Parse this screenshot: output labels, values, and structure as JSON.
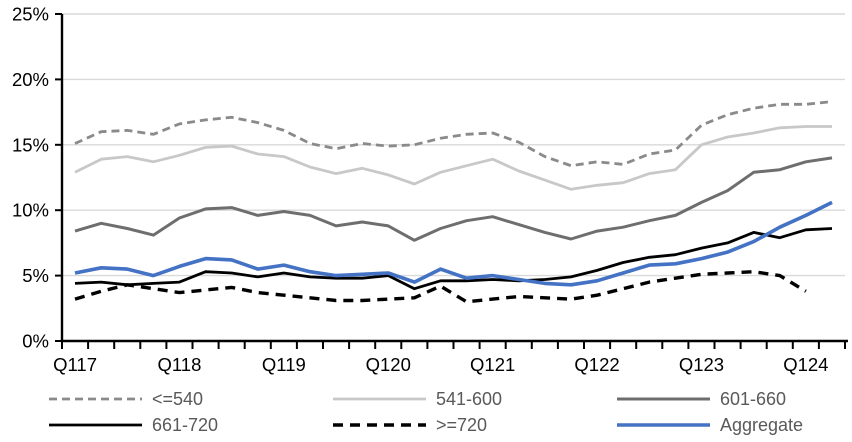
{
  "chart_data": {
    "type": "line",
    "title": "",
    "x": [
      "Q117",
      "Q217",
      "Q317",
      "Q417",
      "Q118",
      "Q218",
      "Q318",
      "Q418",
      "Q119",
      "Q219",
      "Q319",
      "Q419",
      "Q120",
      "Q220",
      "Q320",
      "Q420",
      "Q121",
      "Q221",
      "Q321",
      "Q421",
      "Q122",
      "Q222",
      "Q322",
      "Q422",
      "Q123",
      "Q223",
      "Q323",
      "Q423",
      "Q124",
      "Q224"
    ],
    "x_label_every": 4,
    "x_labels_shown": [
      "Q117",
      "Q118",
      "Q119",
      "Q120",
      "Q121",
      "Q122",
      "Q123",
      "Q124"
    ],
    "ylim": [
      0,
      25
    ],
    "y_tick_step": 5,
    "y_tick_labels": [
      "0%",
      "5%",
      "10%",
      "15%",
      "20%",
      "25%"
    ],
    "grid": "horizontal",
    "gridline_color": "#d9d9d9",
    "axis_color": "#000000",
    "legend_position": "bottom",
    "series": [
      {
        "name": "<=540",
        "color": "#8a8a8a",
        "dash": "8 5",
        "width": 2.8,
        "values": [
          15.1,
          16.0,
          16.1,
          15.8,
          16.6,
          16.9,
          17.1,
          16.7,
          16.1,
          15.1,
          14.7,
          15.1,
          14.9,
          15.0,
          15.5,
          15.8,
          15.9,
          15.2,
          14.1,
          13.4,
          13.7,
          13.5,
          14.3,
          14.6,
          16.5,
          17.3,
          17.8,
          18.1,
          18.1,
          18.3
        ]
      },
      {
        "name": "541-600",
        "color": "#c8c8c8",
        "dash": null,
        "width": 2.8,
        "values": [
          12.9,
          13.9,
          14.1,
          13.7,
          14.2,
          14.8,
          14.9,
          14.3,
          14.1,
          13.3,
          12.8,
          13.2,
          12.7,
          12.0,
          12.9,
          13.4,
          13.9,
          13.0,
          12.3,
          11.6,
          11.9,
          12.1,
          12.8,
          13.1,
          15.0,
          15.6,
          15.9,
          16.3,
          16.4,
          16.4
        ]
      },
      {
        "name": "601-660",
        "color": "#6e6e6e",
        "dash": null,
        "width": 3.0,
        "values": [
          8.4,
          9.0,
          8.6,
          8.1,
          9.4,
          10.1,
          10.2,
          9.6,
          9.9,
          9.6,
          8.8,
          9.1,
          8.8,
          7.7,
          8.6,
          9.2,
          9.5,
          8.9,
          8.3,
          7.8,
          8.4,
          8.7,
          9.2,
          9.6,
          10.6,
          11.5,
          12.9,
          13.1,
          13.7,
          14.0
        ]
      },
      {
        "name": "661-720",
        "color": "#000000",
        "dash": null,
        "width": 2.8,
        "values": [
          4.4,
          4.5,
          4.3,
          4.4,
          4.5,
          5.3,
          5.2,
          4.9,
          5.2,
          4.9,
          4.8,
          4.8,
          5.0,
          4.0,
          4.6,
          4.6,
          4.7,
          4.6,
          4.7,
          4.9,
          5.4,
          6.0,
          6.4,
          6.6,
          7.1,
          7.5,
          8.3,
          7.9,
          8.5,
          8.6
        ]
      },
      {
        "name": ">=720",
        "color": "#000000",
        "dash": "10 7",
        "width": 3.4,
        "values": [
          3.2,
          3.8,
          4.3,
          4.0,
          3.7,
          3.9,
          4.1,
          3.7,
          3.5,
          3.3,
          3.1,
          3.1,
          3.2,
          3.3,
          4.2,
          3.0,
          3.2,
          3.4,
          3.3,
          3.2,
          3.5,
          4.0,
          4.5,
          4.8,
          5.1,
          5.2,
          5.3,
          5.0,
          3.8,
          null
        ]
      },
      {
        "name": "Aggregate",
        "color": "#4472c4",
        "dash": null,
        "width": 3.6,
        "values": [
          5.2,
          5.6,
          5.5,
          5.0,
          5.7,
          6.3,
          6.2,
          5.5,
          5.8,
          5.3,
          5.0,
          5.1,
          5.2,
          4.5,
          5.5,
          4.8,
          5.0,
          4.7,
          4.4,
          4.3,
          4.6,
          5.2,
          5.8,
          5.9,
          6.3,
          6.8,
          7.6,
          8.7,
          9.6,
          10.6
        ]
      }
    ]
  },
  "legend": {
    "items": [
      {
        "label": "<=540"
      },
      {
        "label": "541-600"
      },
      {
        "label": "601-660"
      },
      {
        "label": "661-720"
      },
      {
        "label": ">=720"
      },
      {
        "label": "Aggregate"
      }
    ]
  }
}
